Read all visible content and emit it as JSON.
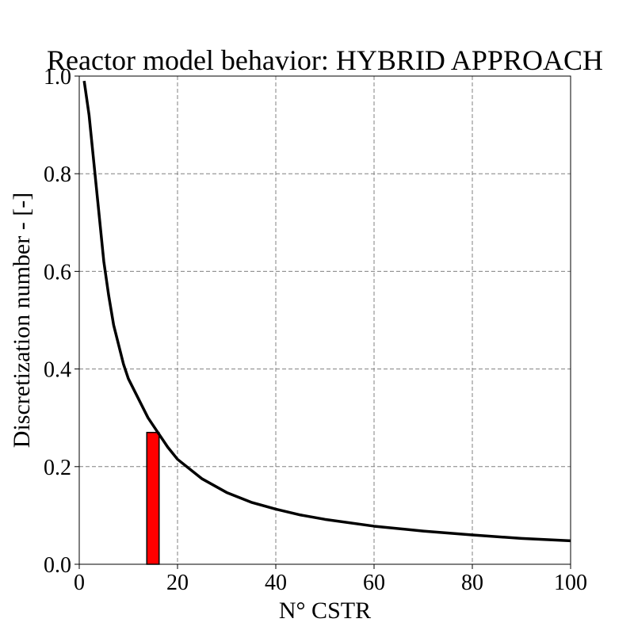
{
  "chart_data": {
    "type": "line",
    "title": "Reactor model behavior: HYBRID APPROACH",
    "xlabel": "N° CSTR",
    "ylabel": "Discretization number - [-]",
    "xlim": [
      0,
      100
    ],
    "ylim": [
      0,
      1.0
    ],
    "grid": true,
    "x_ticks": [
      0,
      20,
      40,
      60,
      80,
      100
    ],
    "x_tick_labels": [
      "0",
      "20",
      "40",
      "60",
      "80",
      "100"
    ],
    "y_ticks": [
      0.0,
      0.2,
      0.4,
      0.6,
      0.8,
      1.0
    ],
    "y_tick_labels": [
      "0.0",
      "0.2",
      "0.4",
      "0.6",
      "0.8",
      "1.0"
    ],
    "series": [
      {
        "type": "line",
        "color": "#000000",
        "x": [
          1,
          2,
          3,
          4,
          5,
          6,
          7,
          8,
          9,
          10,
          12,
          14,
          16,
          18,
          20,
          25,
          30,
          35,
          40,
          45,
          50,
          60,
          70,
          80,
          90,
          100
        ],
        "y": [
          0.99,
          0.92,
          0.82,
          0.72,
          0.62,
          0.55,
          0.49,
          0.45,
          0.41,
          0.38,
          0.34,
          0.3,
          0.27,
          0.24,
          0.215,
          0.175,
          0.147,
          0.127,
          0.113,
          0.101,
          0.092,
          0.078,
          0.068,
          0.06,
          0.053,
          0.048
        ]
      },
      {
        "type": "bar",
        "color": "#ff0000",
        "edgecolor": "#000000",
        "x": [
          15
        ],
        "width": 2.5,
        "y": [
          0.27
        ]
      }
    ]
  }
}
